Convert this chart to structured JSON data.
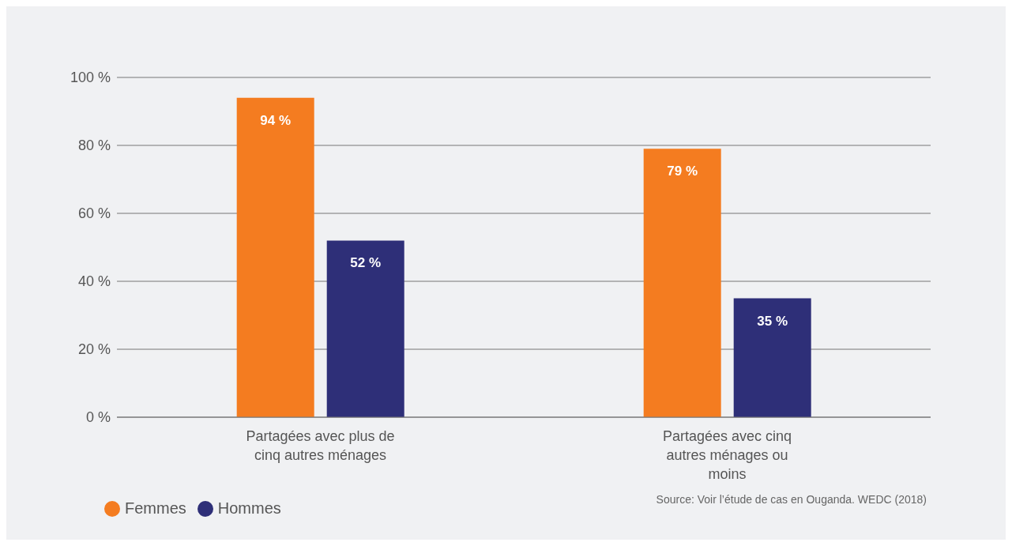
{
  "chart_data": {
    "type": "bar",
    "categories": [
      "Partagées avec plus de cinq autres ménages",
      "Partagées avec cinq autres ménages ou moins"
    ],
    "series": [
      {
        "name": "Femmes",
        "color": "#f47c20",
        "values": [
          94,
          79
        ],
        "value_labels": [
          "94 %",
          "79 %"
        ]
      },
      {
        "name": "Hommes",
        "color": "#2e2f78",
        "values": [
          52,
          35
        ],
        "value_labels": [
          "52 %",
          "35 %"
        ]
      }
    ],
    "ylim": [
      0,
      100
    ],
    "yticks": [
      {
        "value": 0,
        "label": "0 %"
      },
      {
        "value": 20,
        "label": "20 %"
      },
      {
        "value": 40,
        "label": "40 %"
      },
      {
        "value": 60,
        "label": "60 %"
      },
      {
        "value": 80,
        "label": "80 %"
      },
      {
        "value": 100,
        "label": "100 %"
      }
    ],
    "grid": "y",
    "legend": "bottom left",
    "annotations": [
      "Source: Voir l’étude de cas en Ouganda. WEDC (2018)"
    ]
  }
}
